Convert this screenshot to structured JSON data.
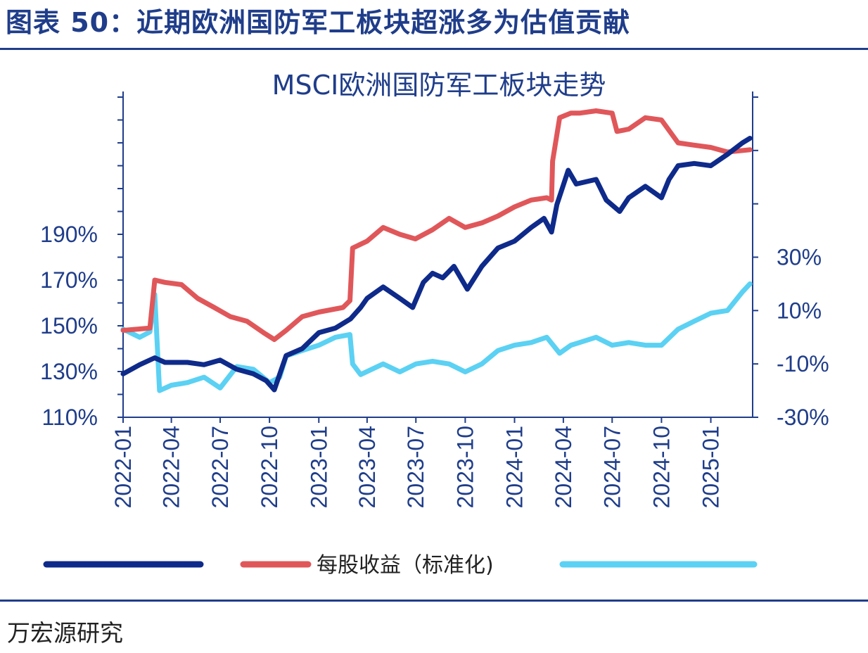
{
  "figure_title": "图表 50：近期欧洲国防军工板块超涨多为估值贡献",
  "source": "万宏源研究",
  "colors": {
    "accent": "#1f3d8a",
    "price_line": "#0e2a8a",
    "eps_line": "#e0575a",
    "valuation_line": "#5bd1f3"
  },
  "chart_data": {
    "type": "line",
    "title": "MSCI欧洲国防军工板块走势",
    "x_ticks": [
      "2022-01",
      "2022-04",
      "2022-07",
      "2022-10",
      "2023-01",
      "2023-04",
      "2023-07",
      "2023-10",
      "2024-01",
      "2024-04",
      "2024-07",
      "2024-10",
      "2025-01"
    ],
    "x_range": [
      "2022-01-01",
      "2025-03-20"
    ],
    "y_left": {
      "ticks": [
        "110%",
        "130%",
        "150%",
        "170%",
        "190%"
      ],
      "range": [
        110,
        250
      ]
    },
    "y_right": {
      "ticks": [
        "-30%",
        "-10%",
        "10%",
        "30%"
      ],
      "range": [
        -30,
        90
      ]
    },
    "legend_position": "bottom",
    "series": [
      {
        "name": "",
        "axis": "left",
        "color": "#0e2a8a",
        "points": [
          [
            "2022-01-01",
            129
          ],
          [
            "2022-02-01",
            133
          ],
          [
            "2022-03-01",
            136
          ],
          [
            "2022-03-20",
            134
          ],
          [
            "2022-05-01",
            134
          ],
          [
            "2022-06-01",
            133
          ],
          [
            "2022-07-01",
            135
          ],
          [
            "2022-08-01",
            131
          ],
          [
            "2022-09-01",
            129
          ],
          [
            "2022-09-25",
            126
          ],
          [
            "2022-10-10",
            122
          ],
          [
            "2022-11-01",
            137
          ],
          [
            "2022-12-01",
            140
          ],
          [
            "2023-01-01",
            147
          ],
          [
            "2023-02-01",
            149
          ],
          [
            "2023-03-01",
            153
          ],
          [
            "2023-03-20",
            158
          ],
          [
            "2023-04-01",
            162
          ],
          [
            "2023-05-01",
            167
          ],
          [
            "2023-06-01",
            162
          ],
          [
            "2023-06-25",
            158
          ],
          [
            "2023-07-15",
            169
          ],
          [
            "2023-08-01",
            173
          ],
          [
            "2023-08-20",
            171
          ],
          [
            "2023-09-10",
            176
          ],
          [
            "2023-10-05",
            166
          ],
          [
            "2023-11-01",
            176
          ],
          [
            "2023-12-01",
            184
          ],
          [
            "2024-01-01",
            187
          ],
          [
            "2024-02-01",
            193
          ],
          [
            "2024-02-25",
            197
          ],
          [
            "2024-03-10",
            191
          ],
          [
            "2024-03-20",
            203
          ],
          [
            "2024-04-10",
            218
          ],
          [
            "2024-04-25",
            212
          ],
          [
            "2024-06-01",
            214
          ],
          [
            "2024-06-20",
            205
          ],
          [
            "2024-07-15",
            200
          ],
          [
            "2024-08-01",
            206
          ],
          [
            "2024-09-01",
            211
          ],
          [
            "2024-10-01",
            206
          ],
          [
            "2024-10-15",
            214
          ],
          [
            "2024-11-01",
            220
          ],
          [
            "2024-12-01",
            221
          ],
          [
            "2025-01-01",
            220
          ],
          [
            "2025-02-01",
            225
          ],
          [
            "2025-03-01",
            230
          ],
          [
            "2025-03-15",
            232
          ]
        ]
      },
      {
        "name": "每股收益（标准化)",
        "axis": "left",
        "color": "#e0575a",
        "points": [
          [
            "2022-01-01",
            148
          ],
          [
            "2022-02-20",
            149
          ],
          [
            "2022-03-01",
            170
          ],
          [
            "2022-03-20",
            169
          ],
          [
            "2022-04-20",
            168
          ],
          [
            "2022-05-20",
            162
          ],
          [
            "2022-06-20",
            158
          ],
          [
            "2022-07-20",
            154
          ],
          [
            "2022-08-20",
            152
          ],
          [
            "2022-09-20",
            147
          ],
          [
            "2022-10-10",
            144
          ],
          [
            "2022-11-01",
            148
          ],
          [
            "2022-12-01",
            154
          ],
          [
            "2023-01-01",
            156
          ],
          [
            "2023-02-15",
            158
          ],
          [
            "2023-02-28",
            161
          ],
          [
            "2023-03-05",
            184
          ],
          [
            "2023-04-01",
            187
          ],
          [
            "2023-05-01",
            193
          ],
          [
            "2023-06-01",
            190
          ],
          [
            "2023-06-30",
            188
          ],
          [
            "2023-08-01",
            192
          ],
          [
            "2023-09-01",
            197
          ],
          [
            "2023-10-01",
            193
          ],
          [
            "2023-11-01",
            195
          ],
          [
            "2023-12-01",
            198
          ],
          [
            "2024-01-01",
            202
          ],
          [
            "2024-02-01",
            205
          ],
          [
            "2024-03-01",
            206
          ],
          [
            "2024-03-10",
            205
          ],
          [
            "2024-03-12",
            222
          ],
          [
            "2024-03-25",
            241
          ],
          [
            "2024-04-15",
            243
          ],
          [
            "2024-05-01",
            243
          ],
          [
            "2024-06-01",
            244
          ],
          [
            "2024-07-01",
            243
          ],
          [
            "2024-07-10",
            235
          ],
          [
            "2024-08-01",
            236
          ],
          [
            "2024-09-01",
            241
          ],
          [
            "2024-10-01",
            240
          ],
          [
            "2024-11-01",
            230
          ],
          [
            "2024-12-01",
            229
          ],
          [
            "2025-01-01",
            228
          ],
          [
            "2025-02-01",
            226
          ],
          [
            "2025-03-15",
            227
          ]
        ]
      },
      {
        "name": "",
        "axis": "right",
        "color": "#5bd1f3",
        "points": [
          [
            "2022-01-01",
            3
          ],
          [
            "2022-02-01",
            0
          ],
          [
            "2022-02-20",
            2
          ],
          [
            "2022-03-01",
            16
          ],
          [
            "2022-03-10",
            -20
          ],
          [
            "2022-04-01",
            -18
          ],
          [
            "2022-05-01",
            -17
          ],
          [
            "2022-06-01",
            -15
          ],
          [
            "2022-07-01",
            -19
          ],
          [
            "2022-08-01",
            -11
          ],
          [
            "2022-09-01",
            -12
          ],
          [
            "2022-10-01",
            -17
          ],
          [
            "2022-10-20",
            -15
          ],
          [
            "2022-11-01",
            -7
          ],
          [
            "2022-12-01",
            -5
          ],
          [
            "2023-01-01",
            -3
          ],
          [
            "2023-02-01",
            0
          ],
          [
            "2023-02-28",
            1
          ],
          [
            "2023-03-05",
            -10
          ],
          [
            "2023-03-20",
            -14
          ],
          [
            "2023-05-01",
            -10
          ],
          [
            "2023-06-01",
            -13
          ],
          [
            "2023-07-01",
            -10
          ],
          [
            "2023-08-01",
            -9
          ],
          [
            "2023-09-01",
            -10
          ],
          [
            "2023-10-01",
            -13
          ],
          [
            "2023-11-01",
            -10
          ],
          [
            "2023-12-01",
            -5
          ],
          [
            "2024-01-01",
            -3
          ],
          [
            "2024-02-01",
            -2
          ],
          [
            "2024-03-01",
            0
          ],
          [
            "2024-03-25",
            -6
          ],
          [
            "2024-04-15",
            -3
          ],
          [
            "2024-05-01",
            -2
          ],
          [
            "2024-06-01",
            0
          ],
          [
            "2024-07-01",
            -3
          ],
          [
            "2024-08-01",
            -2
          ],
          [
            "2024-09-01",
            -3
          ],
          [
            "2024-10-01",
            -3
          ],
          [
            "2024-11-01",
            3
          ],
          [
            "2024-12-01",
            6
          ],
          [
            "2025-01-01",
            9
          ],
          [
            "2025-02-01",
            10
          ],
          [
            "2025-03-01",
            17
          ],
          [
            "2025-03-15",
            20
          ]
        ]
      }
    ]
  }
}
